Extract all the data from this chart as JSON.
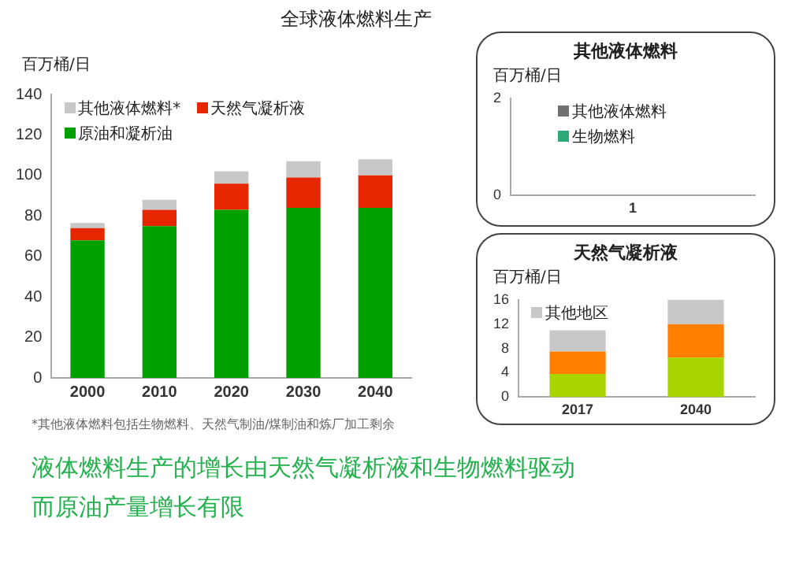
{
  "chart_data": [
    {
      "type": "bar",
      "title": "全球液体燃料生产",
      "ylabel": "百万桶/日",
      "categories": [
        "2000",
        "2010",
        "2020",
        "2030",
        "2040"
      ],
      "stacked": true,
      "legend": "top left",
      "grid": false,
      "ylim": [
        0,
        140
      ],
      "yticks": [
        0,
        20,
        40,
        60,
        80,
        100,
        120,
        140
      ],
      "series": [
        {
          "name": "原油和凝析油",
          "color": "#00a000",
          "values": [
            68,
            75,
            83,
            84,
            84
          ]
        },
        {
          "name": "天然气凝析液",
          "color": "#e62600",
          "values": [
            6,
            8,
            13,
            15,
            16
          ]
        },
        {
          "name": "其他液体燃料*",
          "color": "#c8c8c8",
          "values": [
            2.5,
            5,
            6,
            8,
            8
          ]
        }
      ],
      "annotations": [
        "*其他液体燃料包括生物燃料、天然气制油/煤制油和炼厂加工剩余",
        "液体燃料生产的增长由天然气凝析液和生物燃料驱动",
        "而原油产量增长有限"
      ]
    },
    {
      "type": "bar",
      "title": "其他液体燃料",
      "ylabel": "百万桶/日",
      "categories": [
        "1"
      ],
      "stacked": true,
      "legend": "top",
      "grid": false,
      "ylim": [
        0,
        2
      ],
      "yticks": [
        0,
        2
      ],
      "series": [
        {
          "name": "生物燃料",
          "color": "#2aa876",
          "values": [
            null
          ]
        },
        {
          "name": "其他液体燃料",
          "color": "#707070",
          "values": [
            null
          ]
        }
      ]
    },
    {
      "type": "bar",
      "title": "天然气凝析液",
      "ylabel": "百万桶/日",
      "categories": [
        "2017",
        "2040"
      ],
      "stacked": true,
      "legend": "top left",
      "grid": false,
      "ylim": [
        0,
        16
      ],
      "yticks": [
        0,
        4,
        8,
        12,
        16
      ],
      "series": [
        {
          "color": "#a8d400",
          "values": [
            3.8,
            6.5
          ]
        },
        {
          "color": "#ff7f00",
          "values": [
            3.7,
            5.5
          ]
        },
        {
          "name": "其他地区",
          "color": "#c8c8c8",
          "values": [
            3.5,
            4
          ]
        }
      ]
    }
  ]
}
